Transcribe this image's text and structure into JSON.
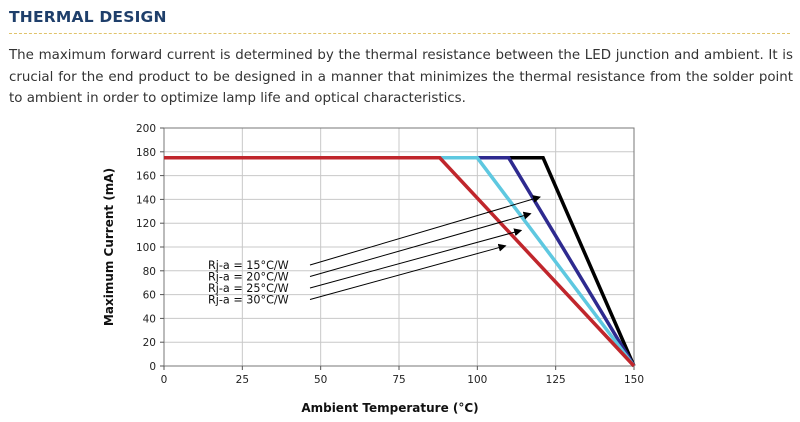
{
  "section": {
    "title": "THERMAL DESIGN",
    "intro": "The maximum forward current is determined by the thermal resistance between the LED junction and ambient. It is crucial for the end product to be designed in a manner that minimizes the thermal resistance from the solder point to ambient in order to optimize lamp life and optical characteristics."
  },
  "chart_data": {
    "type": "line",
    "xlabel": "Ambient Temperature (°C)",
    "ylabel": "Maximum Current (mA)",
    "xlim": [
      0,
      150
    ],
    "ylim": [
      0,
      200
    ],
    "xticks": [
      0,
      25,
      50,
      75,
      100,
      125,
      150
    ],
    "yticks": [
      0,
      20,
      40,
      60,
      80,
      100,
      120,
      140,
      160,
      180,
      200
    ],
    "grid": true,
    "series": [
      {
        "name": "Rj-a = 15°C/W",
        "color": "#000000",
        "points": [
          [
            0,
            175
          ],
          [
            121,
            175
          ],
          [
            150,
            0
          ]
        ]
      },
      {
        "name": "Rj-a = 20°C/W",
        "color": "#2e2a8f",
        "points": [
          [
            0,
            175
          ],
          [
            110,
            175
          ],
          [
            150,
            0
          ]
        ]
      },
      {
        "name": "Rj-a = 25°C/W",
        "color": "#5ec8e0",
        "points": [
          [
            0,
            175
          ],
          [
            100,
            175
          ],
          [
            150,
            0
          ]
        ]
      },
      {
        "name": "Rj-a = 30°C/W",
        "color": "#c0262c",
        "points": [
          [
            0,
            175
          ],
          [
            88,
            175
          ],
          [
            150,
            0
          ]
        ]
      }
    ],
    "annotations": [
      {
        "text": "Rj-a = 15°C/W",
        "arrow_to": [
          120,
          142
        ]
      },
      {
        "text": "Rj-a = 20°C/W",
        "arrow_to": [
          117,
          128
        ]
      },
      {
        "text": "Rj-a = 25°C/W",
        "arrow_to": [
          114,
          114
        ]
      },
      {
        "text": "Rj-a = 30°C/W",
        "arrow_to": [
          109,
          101
        ]
      }
    ]
  }
}
